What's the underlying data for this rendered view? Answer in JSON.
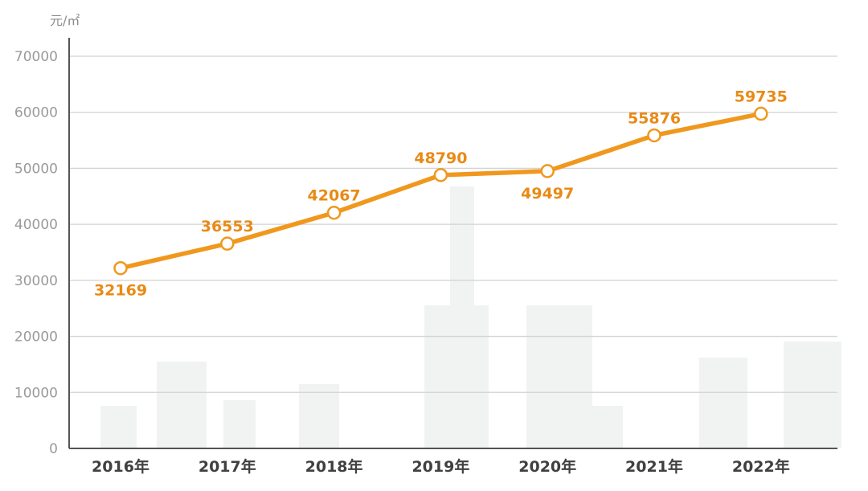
{
  "colors": {
    "line": "#f0981e",
    "label": "#e98a16",
    "marker_fill": "#ffffff",
    "grid": "#d2d2d2",
    "axis": "#555555"
  },
  "chart_data": {
    "type": "line",
    "title": "",
    "xlabel": "",
    "ylabel": "元/㎡",
    "categories": [
      "2016年",
      "2017年",
      "2018年",
      "2019年",
      "2020年",
      "2021年",
      "2022年"
    ],
    "series": [
      {
        "values": [
          32169,
          36553,
          42067,
          48790,
          49497,
          55876,
          59735
        ],
        "labels": [
          "32169",
          "36553",
          "42067",
          "48790",
          "49497",
          "55876",
          "59735"
        ],
        "label_positions": [
          "below",
          "above",
          "above",
          "above",
          "below",
          "above",
          "above"
        ]
      }
    ],
    "ylim": [
      0,
      70000
    ],
    "yticks": [
      "0",
      "10000",
      "20000",
      "30000",
      "40000",
      "50000",
      "60000",
      "70000"
    ],
    "ytick_values": [
      0,
      10000,
      20000,
      30000,
      40000,
      50000,
      60000,
      70000
    ],
    "grid": true,
    "legend": "none"
  }
}
